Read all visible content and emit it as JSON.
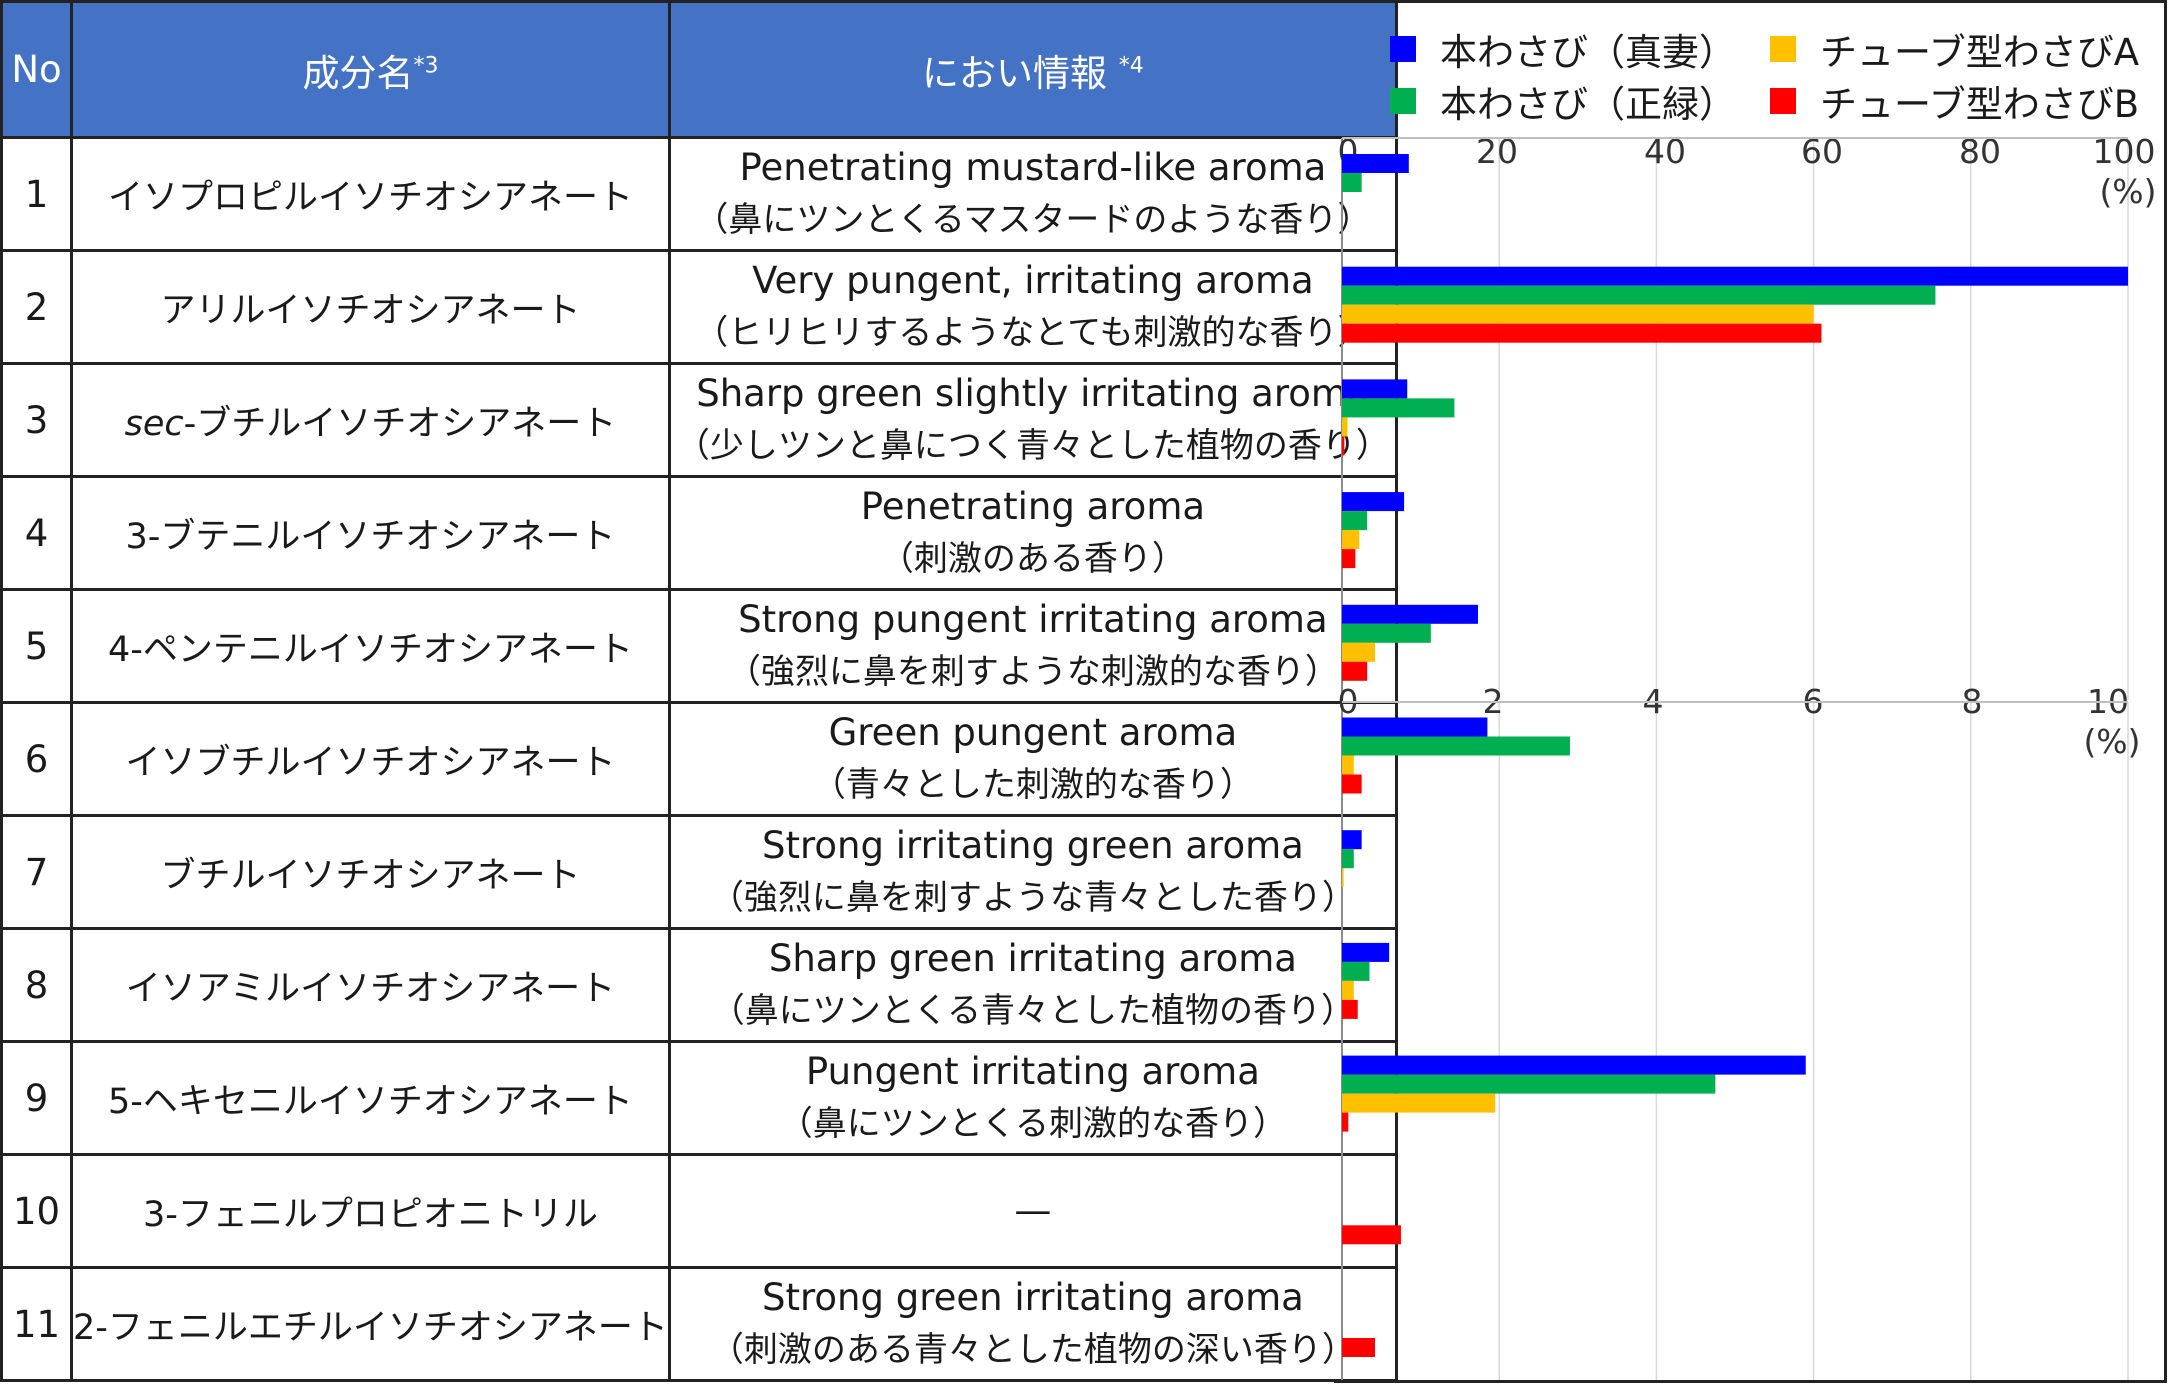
{
  "table": {
    "headers": {
      "no": "No",
      "name": "成分名",
      "name_note": "*3",
      "odor": "におい情報",
      "odor_note": "*4"
    },
    "rows": [
      {
        "no": "1",
        "name": "イソプロピルイソチオシアネート",
        "odor_en": "Penetrating mustard-like aroma",
        "odor_ja": "（鼻にツンとくるマスタードのような香り）"
      },
      {
        "no": "2",
        "name": "アリルイソチオシアネート",
        "odor_en": "Very pungent, irritating aroma",
        "odor_ja": "（ヒリヒリするようなとても刺激的な香り）"
      },
      {
        "no": "3",
        "name_prefix": "sec",
        "name": "-ブチルイソチオシアネート",
        "odor_en": "Sharp green slightly irritating aroma",
        "odor_ja": "（少しツンと鼻につく青々とした植物の香り）"
      },
      {
        "no": "4",
        "name": "3-ブテニルイソチオシアネート",
        "odor_en": "Penetrating aroma",
        "odor_ja": "（刺激のある香り）"
      },
      {
        "no": "5",
        "name": "4-ペンテニルイソチオシアネート",
        "odor_en": "Strong pungent irritating aroma",
        "odor_ja": "（強烈に鼻を刺すような刺激的な香り）"
      },
      {
        "no": "6",
        "name": "イソブチルイソチオシアネート",
        "odor_en": "Green pungent aroma",
        "odor_ja": "（青々とした刺激的な香り）"
      },
      {
        "no": "7",
        "name": "ブチルイソチオシアネート",
        "odor_en": "Strong irritating green aroma",
        "odor_ja": "（強烈に鼻を刺すような青々とした香り）"
      },
      {
        "no": "8",
        "name": "イソアミルイソチオシアネート",
        "odor_en": "Sharp green irritating aroma",
        "odor_ja": "（鼻にツンとくる青々とした植物の香り）"
      },
      {
        "no": "9",
        "name": "5-ヘキセニルイソチオシアネート",
        "odor_en": "Pungent irritating aroma",
        "odor_ja": "（鼻にツンとくる刺激的な香り）"
      },
      {
        "no": "10",
        "name": "3-フェニルプロピオニトリル",
        "odor_en": "—",
        "odor_ja": ""
      },
      {
        "no": "11",
        "name": "2-フェニルエチルイソチオシアネート",
        "odor_en": "Strong green irritating aroma",
        "odor_ja": "（刺激のある青々とした植物の深い香り）"
      }
    ]
  },
  "chart_data": {
    "type": "bar",
    "orientation": "horizontal",
    "unit": "(%)",
    "series": [
      {
        "name": "本わさび（真妻）",
        "color": "#0000FF"
      },
      {
        "name": "本わさび（正緑）",
        "color": "#00B050"
      },
      {
        "name": "チューブ型わさびA",
        "color": "#FFC000"
      },
      {
        "name": "チューブ型わさびB",
        "color": "#FF0000"
      }
    ],
    "axes": [
      {
        "id": "upper",
        "range": [
          0,
          100
        ],
        "ticks": [
          "0",
          "20",
          "40",
          "60",
          "80",
          "100"
        ],
        "rows": [
          "1",
          "2",
          "3",
          "4",
          "5"
        ]
      },
      {
        "id": "lower",
        "range": [
          0,
          10
        ],
        "ticks": [
          "0",
          "2",
          "4",
          "6",
          "8",
          "10"
        ],
        "rows": [
          "6",
          "7",
          "8",
          "9",
          "10",
          "11"
        ]
      }
    ],
    "values": [
      {
        "no": "1",
        "axis": "upper",
        "values": [
          8.5,
          2.5,
          0,
          0
        ]
      },
      {
        "no": "2",
        "axis": "upper",
        "values": [
          100,
          75.5,
          60,
          61
        ]
      },
      {
        "no": "3",
        "axis": "upper",
        "values": [
          8.3,
          14.3,
          0.7,
          0.3
        ]
      },
      {
        "no": "4",
        "axis": "upper",
        "values": [
          7.9,
          3.2,
          2.2,
          1.7
        ]
      },
      {
        "no": "5",
        "axis": "upper",
        "values": [
          17.3,
          11.3,
          4.2,
          3.2
        ]
      },
      {
        "no": "6",
        "axis": "lower",
        "values": [
          1.85,
          2.9,
          0.15,
          0.25
        ]
      },
      {
        "no": "7",
        "axis": "lower",
        "values": [
          0.25,
          0.15,
          0.02,
          0
        ]
      },
      {
        "no": "8",
        "axis": "lower",
        "values": [
          0.6,
          0.35,
          0.15,
          0.2
        ]
      },
      {
        "no": "9",
        "axis": "lower",
        "values": [
          5.9,
          4.75,
          1.95,
          0.08
        ]
      },
      {
        "no": "10",
        "axis": "lower",
        "values": [
          0,
          0,
          0,
          0.75
        ]
      },
      {
        "no": "11",
        "axis": "lower",
        "values": [
          0,
          0,
          0,
          0.42
        ]
      }
    ]
  }
}
